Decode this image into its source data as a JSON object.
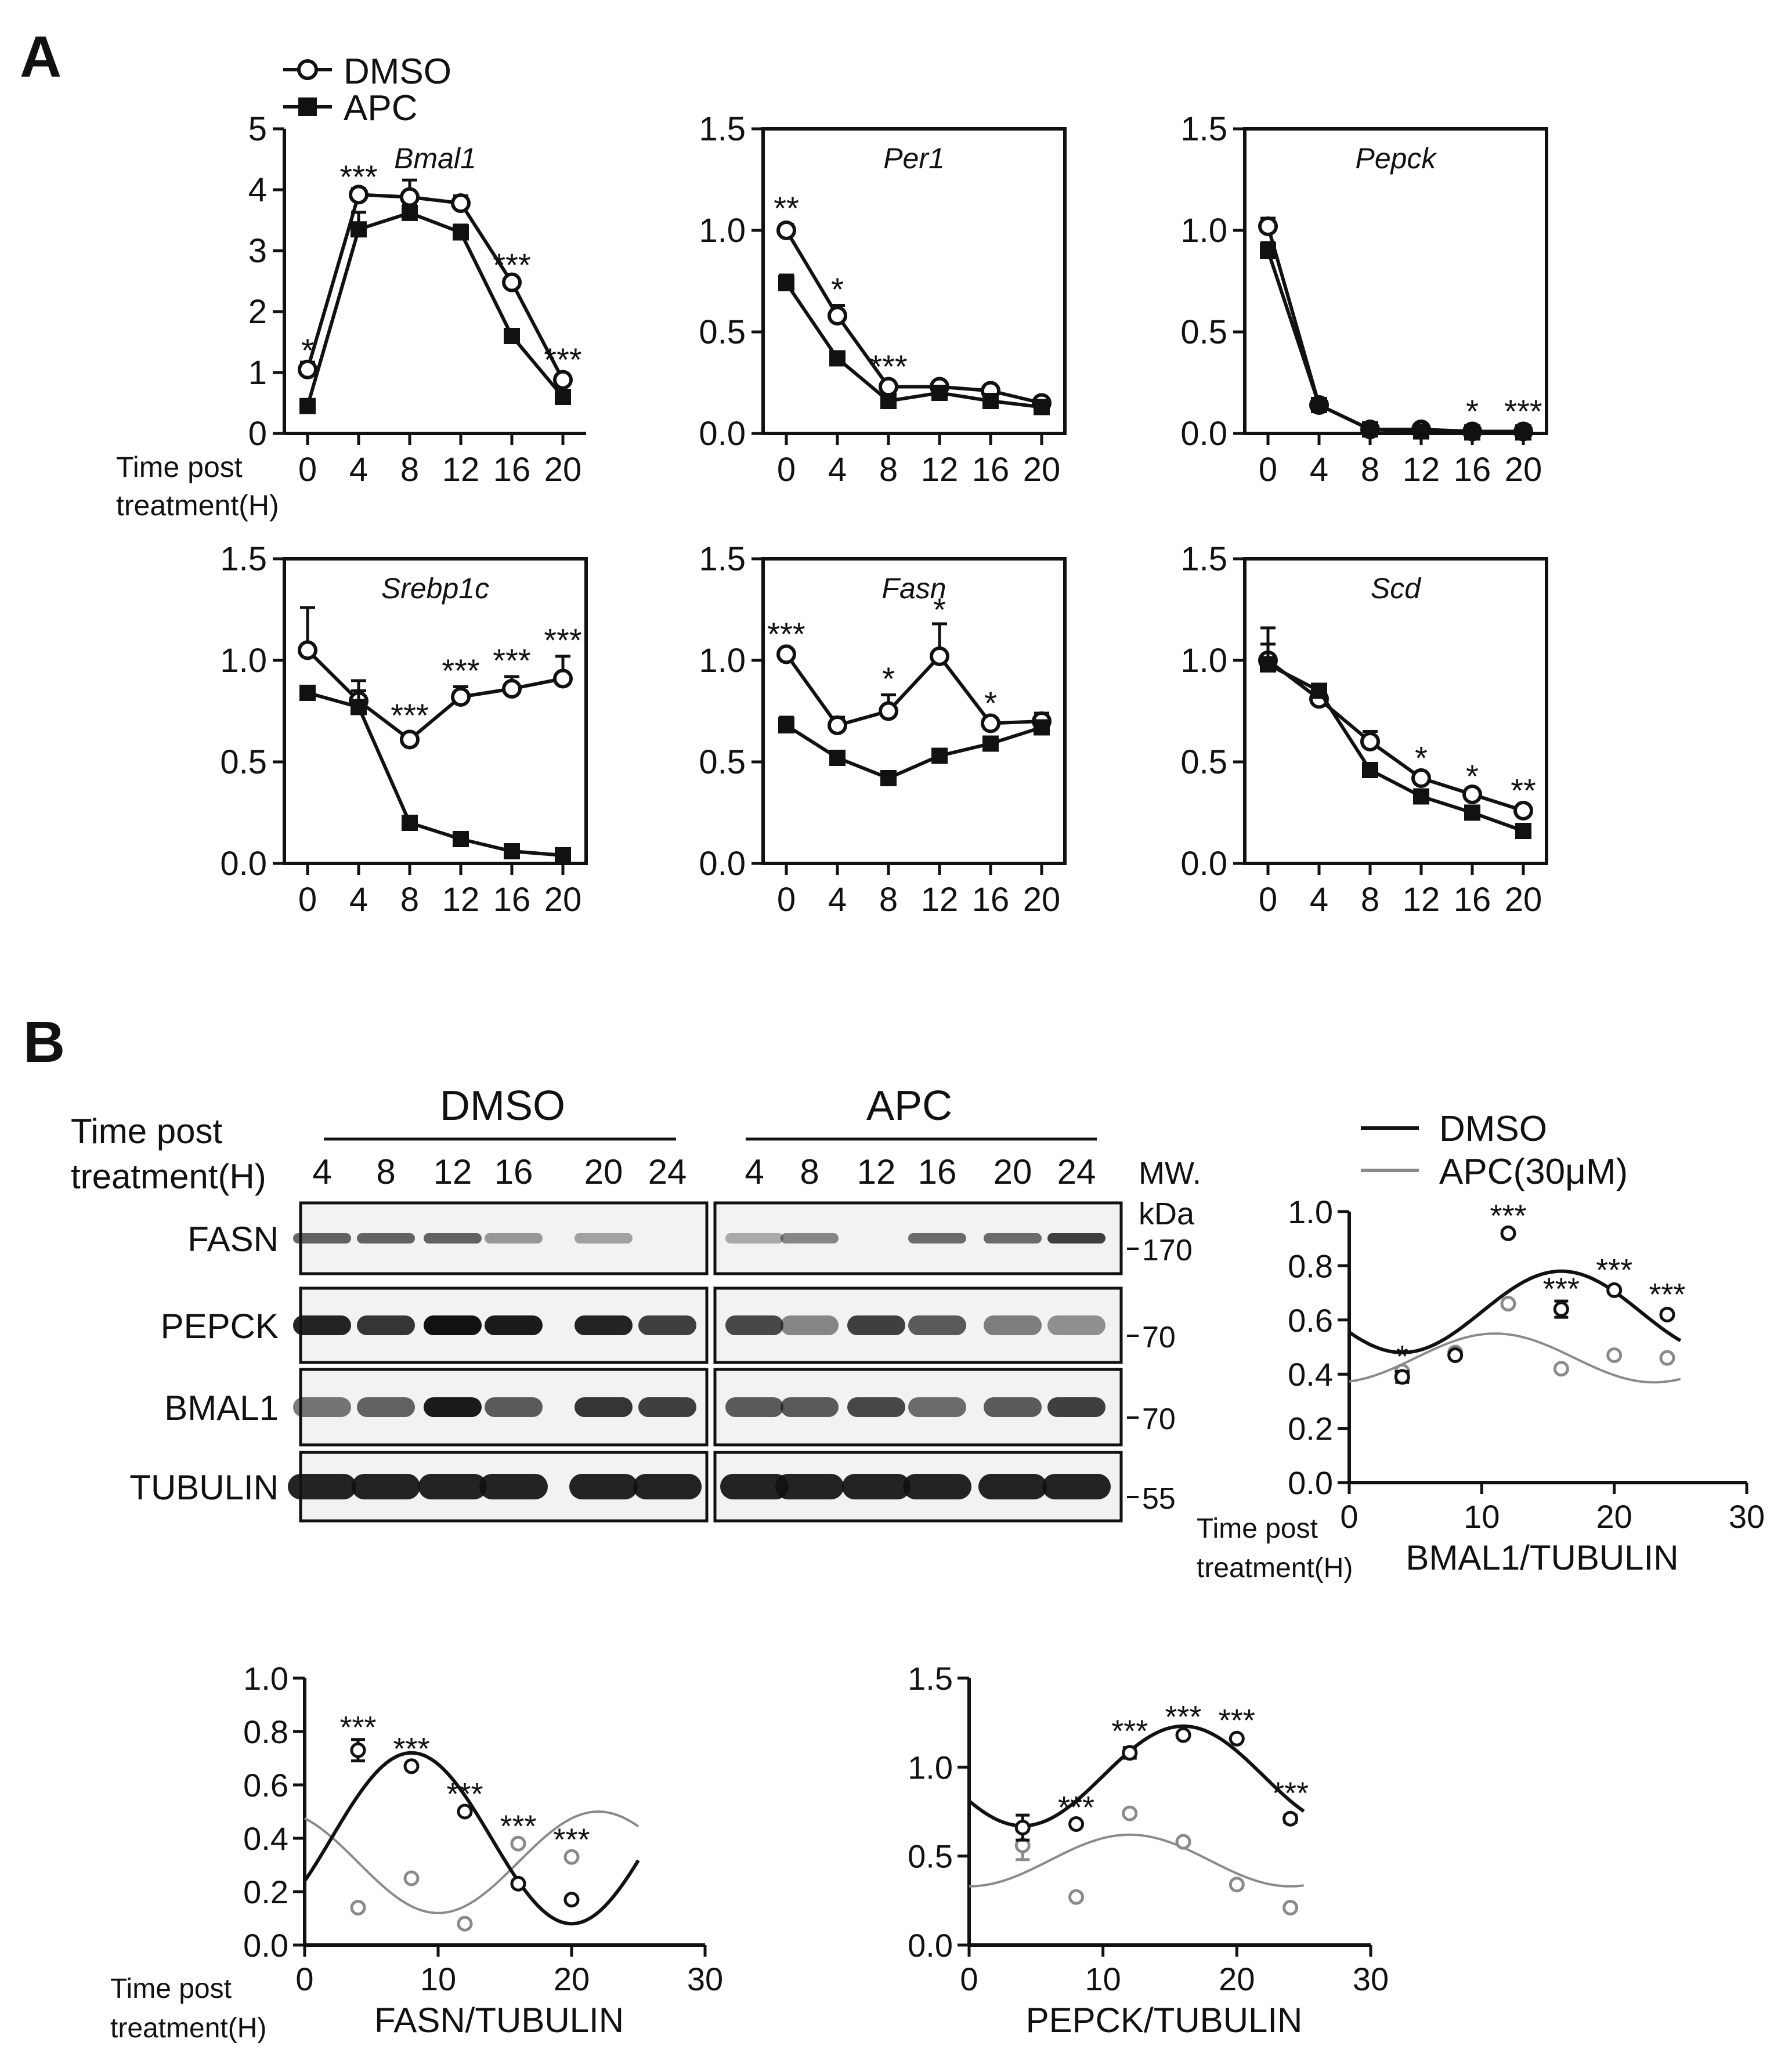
{
  "panels": {
    "A": "A",
    "B": "B",
    "time_label": [
      "Time post",
      "treatment(H)"
    ]
  },
  "legend_A": {
    "dmso": "DMSO",
    "apc": "APC"
  },
  "blot": {
    "time_label": [
      "Time post",
      "treatment(H)"
    ],
    "group_dmso": "DMSO",
    "group_apc": "APC",
    "lanes": [
      "4",
      "8",
      "12",
      "16",
      "20",
      "24"
    ],
    "mw_label": [
      "MW.",
      "kDa"
    ],
    "rows": [
      {
        "label": "FASN",
        "mw": "170",
        "dmso": [
          0.55,
          0.55,
          0.55,
          0.25,
          0.2,
          0
        ],
        "apc": [
          0.15,
          0.35,
          0,
          0.5,
          0.5,
          0.75
        ]
      },
      {
        "label": "PEPCK",
        "mw": "70",
        "dmso": [
          0.9,
          0.8,
          1,
          0.95,
          0.9,
          0.75
        ],
        "apc": [
          0.7,
          0.35,
          0.75,
          0.6,
          0.4,
          0.3
        ]
      },
      {
        "label": "BMAL1",
        "mw": "70",
        "dmso": [
          0.45,
          0.55,
          0.95,
          0.6,
          0.8,
          0.75
        ],
        "apc": [
          0.6,
          0.6,
          0.7,
          0.5,
          0.6,
          0.75
        ]
      },
      {
        "label": "TUBULIN",
        "mw": "55",
        "dmso": [
          0.95,
          0.95,
          0.95,
          0.95,
          0.95,
          0.95
        ],
        "apc": [
          0.95,
          0.95,
          0.95,
          0.95,
          0.95,
          0.95
        ]
      }
    ]
  },
  "colors": {
    "dmso": "#111111",
    "apc": "#8a8a8a",
    "blot_bg": "#f2f2f2"
  },
  "chart_data": [
    {
      "type": "line",
      "panel": "A",
      "title": "Bmal1",
      "italic": true,
      "x": [
        0,
        4,
        8,
        12,
        16,
        20
      ],
      "ylim": [
        0,
        5
      ],
      "yticks": [
        "0",
        "1",
        "2",
        "3",
        "4",
        "5"
      ],
      "xticks": [
        "0",
        "4",
        "8",
        "12",
        "16",
        "20"
      ],
      "series": [
        {
          "name": "DMSO",
          "values": [
            1.05,
            3.92,
            3.88,
            3.78,
            2.48,
            0.88
          ],
          "errors": [
            0.12,
            0.1,
            0.28,
            0.12,
            0.05,
            0.06
          ]
        },
        {
          "name": "APC",
          "values": [
            0.45,
            3.35,
            3.62,
            3.3,
            1.6,
            0.6
          ],
          "errors": [
            0.04,
            0.28,
            0.12,
            0.12,
            0.05,
            0.04
          ]
        }
      ],
      "annotations": [
        {
          "x": 0,
          "y": 1.2,
          "text": "*"
        },
        {
          "x": 4,
          "y": 4.05,
          "text": "***"
        },
        {
          "x": 16,
          "y": 2.6,
          "text": "***"
        },
        {
          "x": 20,
          "y": 1.05,
          "text": "***"
        }
      ]
    },
    {
      "type": "line",
      "panel": "A",
      "title": "Per1",
      "italic": true,
      "x": [
        0,
        4,
        8,
        12,
        16,
        20
      ],
      "ylim": [
        0,
        1.5
      ],
      "yticks": [
        "0.0",
        "0.5",
        "1.0",
        "1.5"
      ],
      "xticks": [
        "0",
        "4",
        "8",
        "12",
        "16",
        "20"
      ],
      "series": [
        {
          "name": "DMSO",
          "values": [
            1.0,
            0.58,
            0.23,
            0.23,
            0.21,
            0.15
          ],
          "errors": [
            0.03,
            0.05,
            0.01,
            0.01,
            0.01,
            0.01
          ]
        },
        {
          "name": "APC",
          "values": [
            0.74,
            0.37,
            0.16,
            0.2,
            0.16,
            0.13
          ],
          "errors": [
            0.04,
            0.03,
            0.01,
            0.01,
            0.01,
            0.01
          ]
        }
      ],
      "annotations": [
        {
          "x": 0,
          "y": 1.06,
          "text": "**"
        },
        {
          "x": 4,
          "y": 0.66,
          "text": "*"
        },
        {
          "x": 8,
          "y": 0.28,
          "text": "***"
        }
      ]
    },
    {
      "type": "line",
      "panel": "A",
      "title": "Pepck",
      "italic": true,
      "x": [
        0,
        4,
        8,
        12,
        16,
        20
      ],
      "ylim": [
        0,
        1.5
      ],
      "yticks": [
        "0.0",
        "0.5",
        "1.0",
        "1.5"
      ],
      "xticks": [
        "0",
        "4",
        "8",
        "12",
        "16",
        "20"
      ],
      "series": [
        {
          "name": "DMSO",
          "values": [
            1.02,
            0.14,
            0.02,
            0.02,
            0.01,
            0.01
          ],
          "errors": [
            0.04,
            0.01,
            0.005,
            0.005,
            0.005,
            0.005
          ]
        },
        {
          "name": "APC",
          "values": [
            0.9,
            0.14,
            0.02,
            0.01,
            0.005,
            0.005
          ],
          "errors": [
            0.04,
            0.01,
            0.005,
            0.005,
            0.005,
            0.005
          ]
        }
      ],
      "annotations": [
        {
          "x": 16,
          "y": 0.06,
          "text": "*"
        },
        {
          "x": 20,
          "y": 0.06,
          "text": "***"
        }
      ]
    },
    {
      "type": "line",
      "panel": "A",
      "title": "Srebp1c",
      "italic": true,
      "x": [
        0,
        4,
        8,
        12,
        16,
        20
      ],
      "ylim": [
        0,
        1.5
      ],
      "yticks": [
        "0.0",
        "0.5",
        "1.0",
        "1.5"
      ],
      "xticks": [
        "0",
        "4",
        "8",
        "12",
        "16",
        "20"
      ],
      "series": [
        {
          "name": "DMSO",
          "values": [
            1.05,
            0.8,
            0.61,
            0.82,
            0.86,
            0.91
          ],
          "errors": [
            0.21,
            0.1,
            0.03,
            0.05,
            0.06,
            0.11
          ]
        },
        {
          "name": "APC",
          "values": [
            0.84,
            0.77,
            0.2,
            0.12,
            0.06,
            0.04
          ],
          "errors": [
            0.02,
            0.08,
            0.01,
            0.01,
            0.01,
            0.01
          ]
        }
      ],
      "annotations": [
        {
          "x": 8,
          "y": 0.68,
          "text": "***"
        },
        {
          "x": 12,
          "y": 0.9,
          "text": "***"
        },
        {
          "x": 16,
          "y": 0.95,
          "text": "***"
        },
        {
          "x": 20,
          "y": 1.05,
          "text": "***"
        }
      ]
    },
    {
      "type": "line",
      "panel": "A",
      "title": "Fasn",
      "italic": true,
      "x": [
        0,
        4,
        8,
        12,
        16,
        20
      ],
      "ylim": [
        0,
        1.5
      ],
      "yticks": [
        "0.0",
        "0.5",
        "1.0",
        "1.5"
      ],
      "xticks": [
        "0",
        "4",
        "8",
        "12",
        "16",
        "20"
      ],
      "series": [
        {
          "name": "DMSO",
          "values": [
            1.03,
            0.68,
            0.75,
            1.02,
            0.69,
            0.7
          ],
          "errors": [
            0.02,
            0.04,
            0.08,
            0.16,
            0.02,
            0.04
          ]
        },
        {
          "name": "APC",
          "values": [
            0.68,
            0.52,
            0.42,
            0.53,
            0.59,
            0.67
          ],
          "errors": [
            0.04,
            0.02,
            0.02,
            0.02,
            0.02,
            0.03
          ]
        }
      ],
      "annotations": [
        {
          "x": 0,
          "y": 1.08,
          "text": "***"
        },
        {
          "x": 8,
          "y": 0.86,
          "text": "*"
        },
        {
          "x": 12,
          "y": 1.2,
          "text": "*"
        },
        {
          "x": 16,
          "y": 0.74,
          "text": "*"
        }
      ]
    },
    {
      "type": "line",
      "panel": "A",
      "title": "Scd",
      "italic": true,
      "x": [
        0,
        4,
        8,
        12,
        16,
        20
      ],
      "ylim": [
        0,
        1.5
      ],
      "yticks": [
        "0.0",
        "0.5",
        "1.0",
        "1.5"
      ],
      "xticks": [
        "0",
        "4",
        "8",
        "12",
        "16",
        "20"
      ],
      "series": [
        {
          "name": "DMSO",
          "values": [
            1.0,
            0.81,
            0.6,
            0.42,
            0.34,
            0.26
          ],
          "errors": [
            0.16,
            0.02,
            0.05,
            0.02,
            0.01,
            0.01
          ]
        },
        {
          "name": "APC",
          "values": [
            0.98,
            0.85,
            0.46,
            0.33,
            0.25,
            0.16
          ],
          "errors": [
            0.1,
            0.02,
            0.03,
            0.02,
            0.01,
            0.01
          ]
        }
      ],
      "annotations": [
        {
          "x": 12,
          "y": 0.47,
          "text": "*"
        },
        {
          "x": 16,
          "y": 0.38,
          "text": "*"
        },
        {
          "x": 20,
          "y": 0.31,
          "text": "**"
        }
      ]
    },
    {
      "type": "scatter",
      "panel": "B",
      "xlabel": "BMAL1/TUBULIN",
      "xlim": [
        0,
        30
      ],
      "ylim": [
        0,
        1.0
      ],
      "xticks": [
        "0",
        "10",
        "20",
        "30"
      ],
      "yticks": [
        "0.0",
        "0.2",
        "0.4",
        "0.6",
        "0.8",
        "1.0"
      ],
      "legend": [
        "DMSO",
        "APC(30μM)"
      ],
      "series": [
        {
          "name": "DMSO",
          "x": [
            4,
            8,
            12,
            16,
            20,
            24
          ],
          "values": [
            0.39,
            0.47,
            0.92,
            0.64,
            0.71,
            0.62
          ],
          "errors": [
            0.02,
            0.01,
            0.01,
            0.03,
            0.01,
            0.01
          ],
          "fit": {
            "mesor": 0.63,
            "amp": 0.15,
            "peak": 16,
            "period": 24
          }
        },
        {
          "name": "APC(30μM)",
          "x": [
            4,
            8,
            12,
            16,
            20,
            24
          ],
          "values": [
            0.41,
            0.48,
            0.66,
            0.42,
            0.47,
            0.46
          ],
          "fit": {
            "mesor": 0.46,
            "amp": 0.09,
            "peak": 11,
            "period": 24
          }
        }
      ],
      "annotations": [
        {
          "x": 4,
          "y": 0.43,
          "text": "*"
        },
        {
          "x": 12,
          "y": 0.95,
          "text": "***"
        },
        {
          "x": 16,
          "y": 0.68,
          "text": "***"
        },
        {
          "x": 20,
          "y": 0.75,
          "text": "***"
        },
        {
          "x": 24,
          "y": 0.66,
          "text": "***"
        }
      ]
    },
    {
      "type": "scatter",
      "panel": "B",
      "xlabel": "FASN/TUBULIN",
      "xlim": [
        0,
        30
      ],
      "ylim": [
        0,
        1.0
      ],
      "xticks": [
        "0",
        "10",
        "20",
        "30"
      ],
      "yticks": [
        "0.0",
        "0.2",
        "0.4",
        "0.6",
        "0.8",
        "1.0"
      ],
      "series": [
        {
          "name": "DMSO",
          "x": [
            4,
            8,
            12,
            16,
            20
          ],
          "values": [
            0.73,
            0.67,
            0.5,
            0.23,
            0.17
          ],
          "errors": [
            0.04,
            0.01,
            0.01,
            0.01,
            0.01
          ],
          "fit": {
            "mesor": 0.4,
            "amp": 0.32,
            "peak": 8,
            "period": 24
          }
        },
        {
          "name": "APC(30μM)",
          "x": [
            4,
            8,
            12,
            16,
            20
          ],
          "values": [
            0.14,
            0.25,
            0.08,
            0.38,
            0.33
          ],
          "fit": {
            "mesor": 0.31,
            "amp": 0.19,
            "peak": 22,
            "period": 24
          }
        }
      ],
      "annotations": [
        {
          "x": 4,
          "y": 0.78,
          "text": "***"
        },
        {
          "x": 8,
          "y": 0.7,
          "text": "***"
        },
        {
          "x": 12,
          "y": 0.53,
          "text": "***"
        },
        {
          "x": 16,
          "y": 0.41,
          "text": "***"
        },
        {
          "x": 20,
          "y": 0.36,
          "text": "***"
        }
      ]
    },
    {
      "type": "scatter",
      "panel": "B",
      "xlabel": "PEPCK/TUBULIN",
      "xlim": [
        0,
        30
      ],
      "ylim": [
        0,
        1.5
      ],
      "xticks": [
        "0",
        "10",
        "20",
        "30"
      ],
      "yticks": [
        "0.0",
        "0.5",
        "1.0",
        "1.5"
      ],
      "series": [
        {
          "name": "DMSO",
          "x": [
            4,
            8,
            12,
            16,
            20,
            24
          ],
          "values": [
            0.66,
            0.68,
            1.08,
            1.18,
            1.16,
            0.71
          ],
          "errors": [
            0.07,
            0.01,
            0.03,
            0.01,
            0.01,
            0.02
          ],
          "fit": {
            "mesor": 0.95,
            "amp": 0.28,
            "peak": 16,
            "period": 24
          }
        },
        {
          "name": "APC(30μM)",
          "x": [
            4,
            8,
            12,
            16,
            20,
            24
          ],
          "values": [
            0.56,
            0.27,
            0.74,
            0.58,
            0.34,
            0.21
          ],
          "errors": [
            0.08,
            0,
            0,
            0,
            0,
            0
          ],
          "fit": {
            "mesor": 0.475,
            "amp": 0.145,
            "peak": 12,
            "period": 24
          }
        }
      ],
      "annotations": [
        {
          "x": 8,
          "y": 0.72,
          "text": "***"
        },
        {
          "x": 12,
          "y": 1.15,
          "text": "***"
        },
        {
          "x": 16,
          "y": 1.23,
          "text": "***"
        },
        {
          "x": 20,
          "y": 1.21,
          "text": "***"
        },
        {
          "x": 24,
          "y": 0.8,
          "text": "***"
        }
      ]
    }
  ]
}
